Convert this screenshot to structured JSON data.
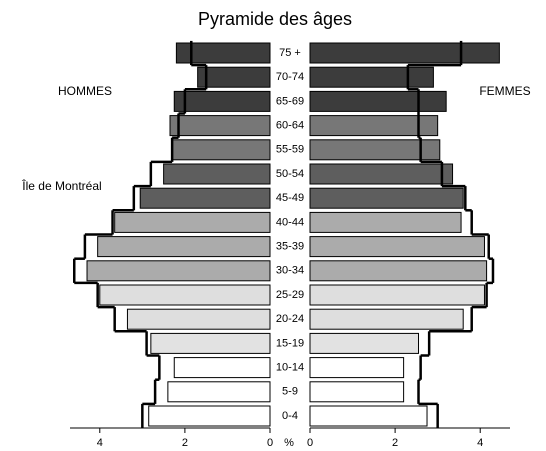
{
  "chart_data": {
    "type": "pyramid",
    "title": "Pyramide des âges",
    "categories": [
      "75 +",
      "70-74",
      "65-69",
      "60-64",
      "55-59",
      "50-54",
      "45-49",
      "40-44",
      "35-39",
      "30-34",
      "25-29",
      "20-24",
      "15-19",
      "10-14",
      "5-9",
      "0-4"
    ],
    "colors": [
      "#3c3c3c",
      "#3c3c3c",
      "#3c3c3c",
      "#777777",
      "#777777",
      "#5e5e5e",
      "#5e5e5e",
      "#ababab",
      "#ababab",
      "#ababab",
      "#dedede",
      "#dedede",
      "#e2e2e2",
      "#ffffff",
      "#ffffff",
      "#ffffff"
    ],
    "series": [
      {
        "name": "HOMMES",
        "side": "left",
        "values": [
          2.2,
          1.7,
          2.25,
          2.35,
          2.3,
          2.5,
          3.05,
          3.65,
          4.05,
          4.3,
          4.0,
          3.35,
          2.8,
          2.25,
          2.4,
          2.85
        ]
      },
      {
        "name": "FEMMES",
        "side": "right",
        "values": [
          4.45,
          2.9,
          3.2,
          3.0,
          3.05,
          3.35,
          3.6,
          3.55,
          4.1,
          4.15,
          4.1,
          3.6,
          2.55,
          2.2,
          2.2,
          2.75
        ]
      }
    ],
    "outline": {
      "name": "Île de Montréal",
      "hommes": [
        1.85,
        1.5,
        2.0,
        2.15,
        2.3,
        2.8,
        3.2,
        3.7,
        4.35,
        4.6,
        4.05,
        3.65,
        2.9,
        2.6,
        2.7,
        3.0
      ],
      "femmes": [
        3.55,
        2.3,
        2.55,
        2.55,
        2.6,
        3.1,
        3.65,
        3.8,
        4.2,
        4.3,
        4.15,
        3.8,
        2.8,
        2.6,
        2.55,
        3.0
      ]
    },
    "xlabel": "%",
    "xlim": [
      0,
      4.7
    ],
    "xticks": [
      0,
      2,
      4
    ]
  }
}
